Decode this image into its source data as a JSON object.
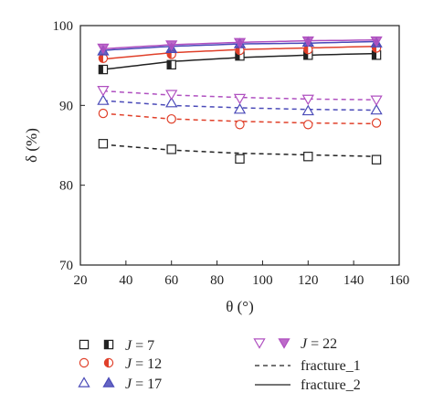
{
  "chart_data": {
    "type": "scatter",
    "xlabel": "θ (°)",
    "ylabel": "δ (%)",
    "xlim": [
      20,
      160
    ],
    "ylim": [
      70,
      100
    ],
    "xticks": [
      20,
      40,
      60,
      80,
      100,
      120,
      140,
      160
    ],
    "yticks": [
      70,
      80,
      90,
      100
    ],
    "x": [
      30,
      60,
      90,
      120,
      150
    ],
    "series": [
      {
        "name": "J = 7",
        "legend_label": "= 7",
        "fracture": "fracture_1",
        "color": "#222222",
        "marker": "square",
        "values": [
          85.2,
          84.5,
          83.3,
          83.6,
          83.2
        ],
        "fit": [
          85.1,
          84.4,
          84.0,
          83.8,
          83.6
        ]
      },
      {
        "name": "J = 7",
        "fracture": "fracture_2",
        "color": "#222222",
        "marker": "square-half",
        "values": [
          94.5,
          95.1,
          96.2,
          96.3,
          96.3
        ],
        "fit": [
          94.5,
          95.5,
          96.0,
          96.3,
          96.5
        ]
      },
      {
        "name": "J = 12",
        "legend_label": "= 12",
        "fracture": "fracture_1",
        "color": "#e0402a",
        "marker": "circle",
        "values": [
          89.0,
          88.3,
          87.6,
          87.6,
          87.8
        ],
        "fit": [
          89.0,
          88.3,
          88.0,
          87.8,
          87.7
        ]
      },
      {
        "name": "J = 12",
        "fracture": "fracture_2",
        "color": "#e0402a",
        "marker": "circle-half",
        "values": [
          95.9,
          96.4,
          96.9,
          97.0,
          97.2
        ],
        "fit": [
          95.8,
          96.6,
          97.0,
          97.2,
          97.4
        ]
      },
      {
        "name": "J = 17",
        "legend_label": "= 17",
        "fracture": "fracture_1",
        "color": "#4a4ab8",
        "marker": "triangle",
        "values": [
          90.6,
          90.3,
          89.5,
          89.3,
          89.4
        ],
        "fit": [
          90.6,
          90.0,
          89.7,
          89.5,
          89.4
        ]
      },
      {
        "name": "J = 17",
        "fracture": "fracture_2",
        "color": "#4a4ab8",
        "marker": "triangle-filled",
        "values": [
          96.8,
          97.1,
          97.7,
          97.9,
          97.8
        ],
        "fit": [
          96.9,
          97.4,
          97.7,
          97.8,
          98.0
        ]
      },
      {
        "name": "J = 22",
        "legend_label": "= 22",
        "fracture": "fracture_1",
        "color": "#b050c0",
        "marker": "triangle-down",
        "values": [
          91.9,
          91.4,
          90.9,
          90.8,
          90.7
        ],
        "fit": [
          91.8,
          91.3,
          91.0,
          90.8,
          90.7
        ]
      },
      {
        "name": "J = 22",
        "fracture": "fracture_2",
        "color": "#b050c0",
        "marker": "triangle-down-filled",
        "values": [
          97.2,
          97.6,
          97.9,
          98.1,
          98.1
        ],
        "fit": [
          97.1,
          97.6,
          97.9,
          98.1,
          98.2
        ]
      }
    ],
    "legend": {
      "symbol": "J",
      "fracture_1_label": "fracture_1",
      "fracture_2_label": "fracture_2",
      "fracture_1_style": "dashed",
      "fracture_2_style": "solid",
      "placement": "bottom"
    }
  }
}
